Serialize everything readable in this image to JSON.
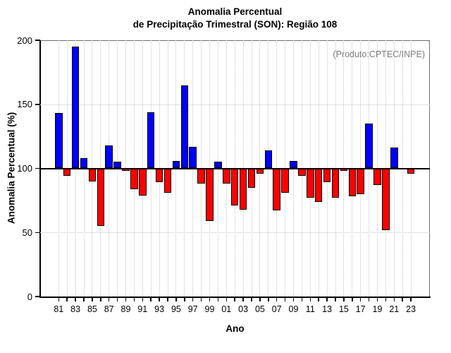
{
  "header": {
    "title_line1": "Anomalia Percentual",
    "title_line2": "de Precipitação Trimestral (SON): Região 108"
  },
  "axes": {
    "x_title": "Ano",
    "y_title": "Anomalia Percentual (%)"
  },
  "annotation": "(Produto:CPTEC/INPE)",
  "chart_data": {
    "type": "bar",
    "title": "Anomalia Percentual de Precipitação Trimestral (SON): Região 108",
    "xlabel": "Ano",
    "ylabel": "Anomalia Percentual (%)",
    "ylim": [
      0,
      200
    ],
    "y_ticks": [
      0,
      50,
      100,
      150,
      200
    ],
    "baseline": 100,
    "grid": "dotted",
    "legend": "none",
    "annotation": "(Produto:CPTEC/INPE)",
    "positive_color": "#0000ff",
    "negative_color": "#ff0000",
    "categories": [
      "1981",
      "1982",
      "1983",
      "1984",
      "1985",
      "1986",
      "1987",
      "1988",
      "1989",
      "1990",
      "1991",
      "1992",
      "1993",
      "1994",
      "1995",
      "1996",
      "1997",
      "1998",
      "1999",
      "2000",
      "2001",
      "2002",
      "2003",
      "2004",
      "2005",
      "2006",
      "2007",
      "2008",
      "2009",
      "2010",
      "2011",
      "2012",
      "2013",
      "2014",
      "2015",
      "2016",
      "2017",
      "2018",
      "2019",
      "2020",
      "2021",
      "2022",
      "2023"
    ],
    "x_tick_labels": [
      "81",
      "83",
      "85",
      "87",
      "89",
      "91",
      "93",
      "95",
      "97",
      "99",
      "01",
      "03",
      "05",
      "07",
      "09",
      "11",
      "13",
      "15",
      "17",
      "19",
      "21",
      "23"
    ],
    "values": [
      143,
      94,
      195,
      108,
      90,
      55,
      118,
      105,
      98,
      84,
      79,
      144,
      89,
      81,
      106,
      165,
      117,
      88,
      59,
      105,
      88,
      71,
      68,
      85,
      96,
      114,
      67,
      81,
      106,
      94,
      77,
      74,
      89,
      77,
      98,
      78,
      80,
      135,
      87,
      52,
      116,
      100,
      96
    ]
  }
}
